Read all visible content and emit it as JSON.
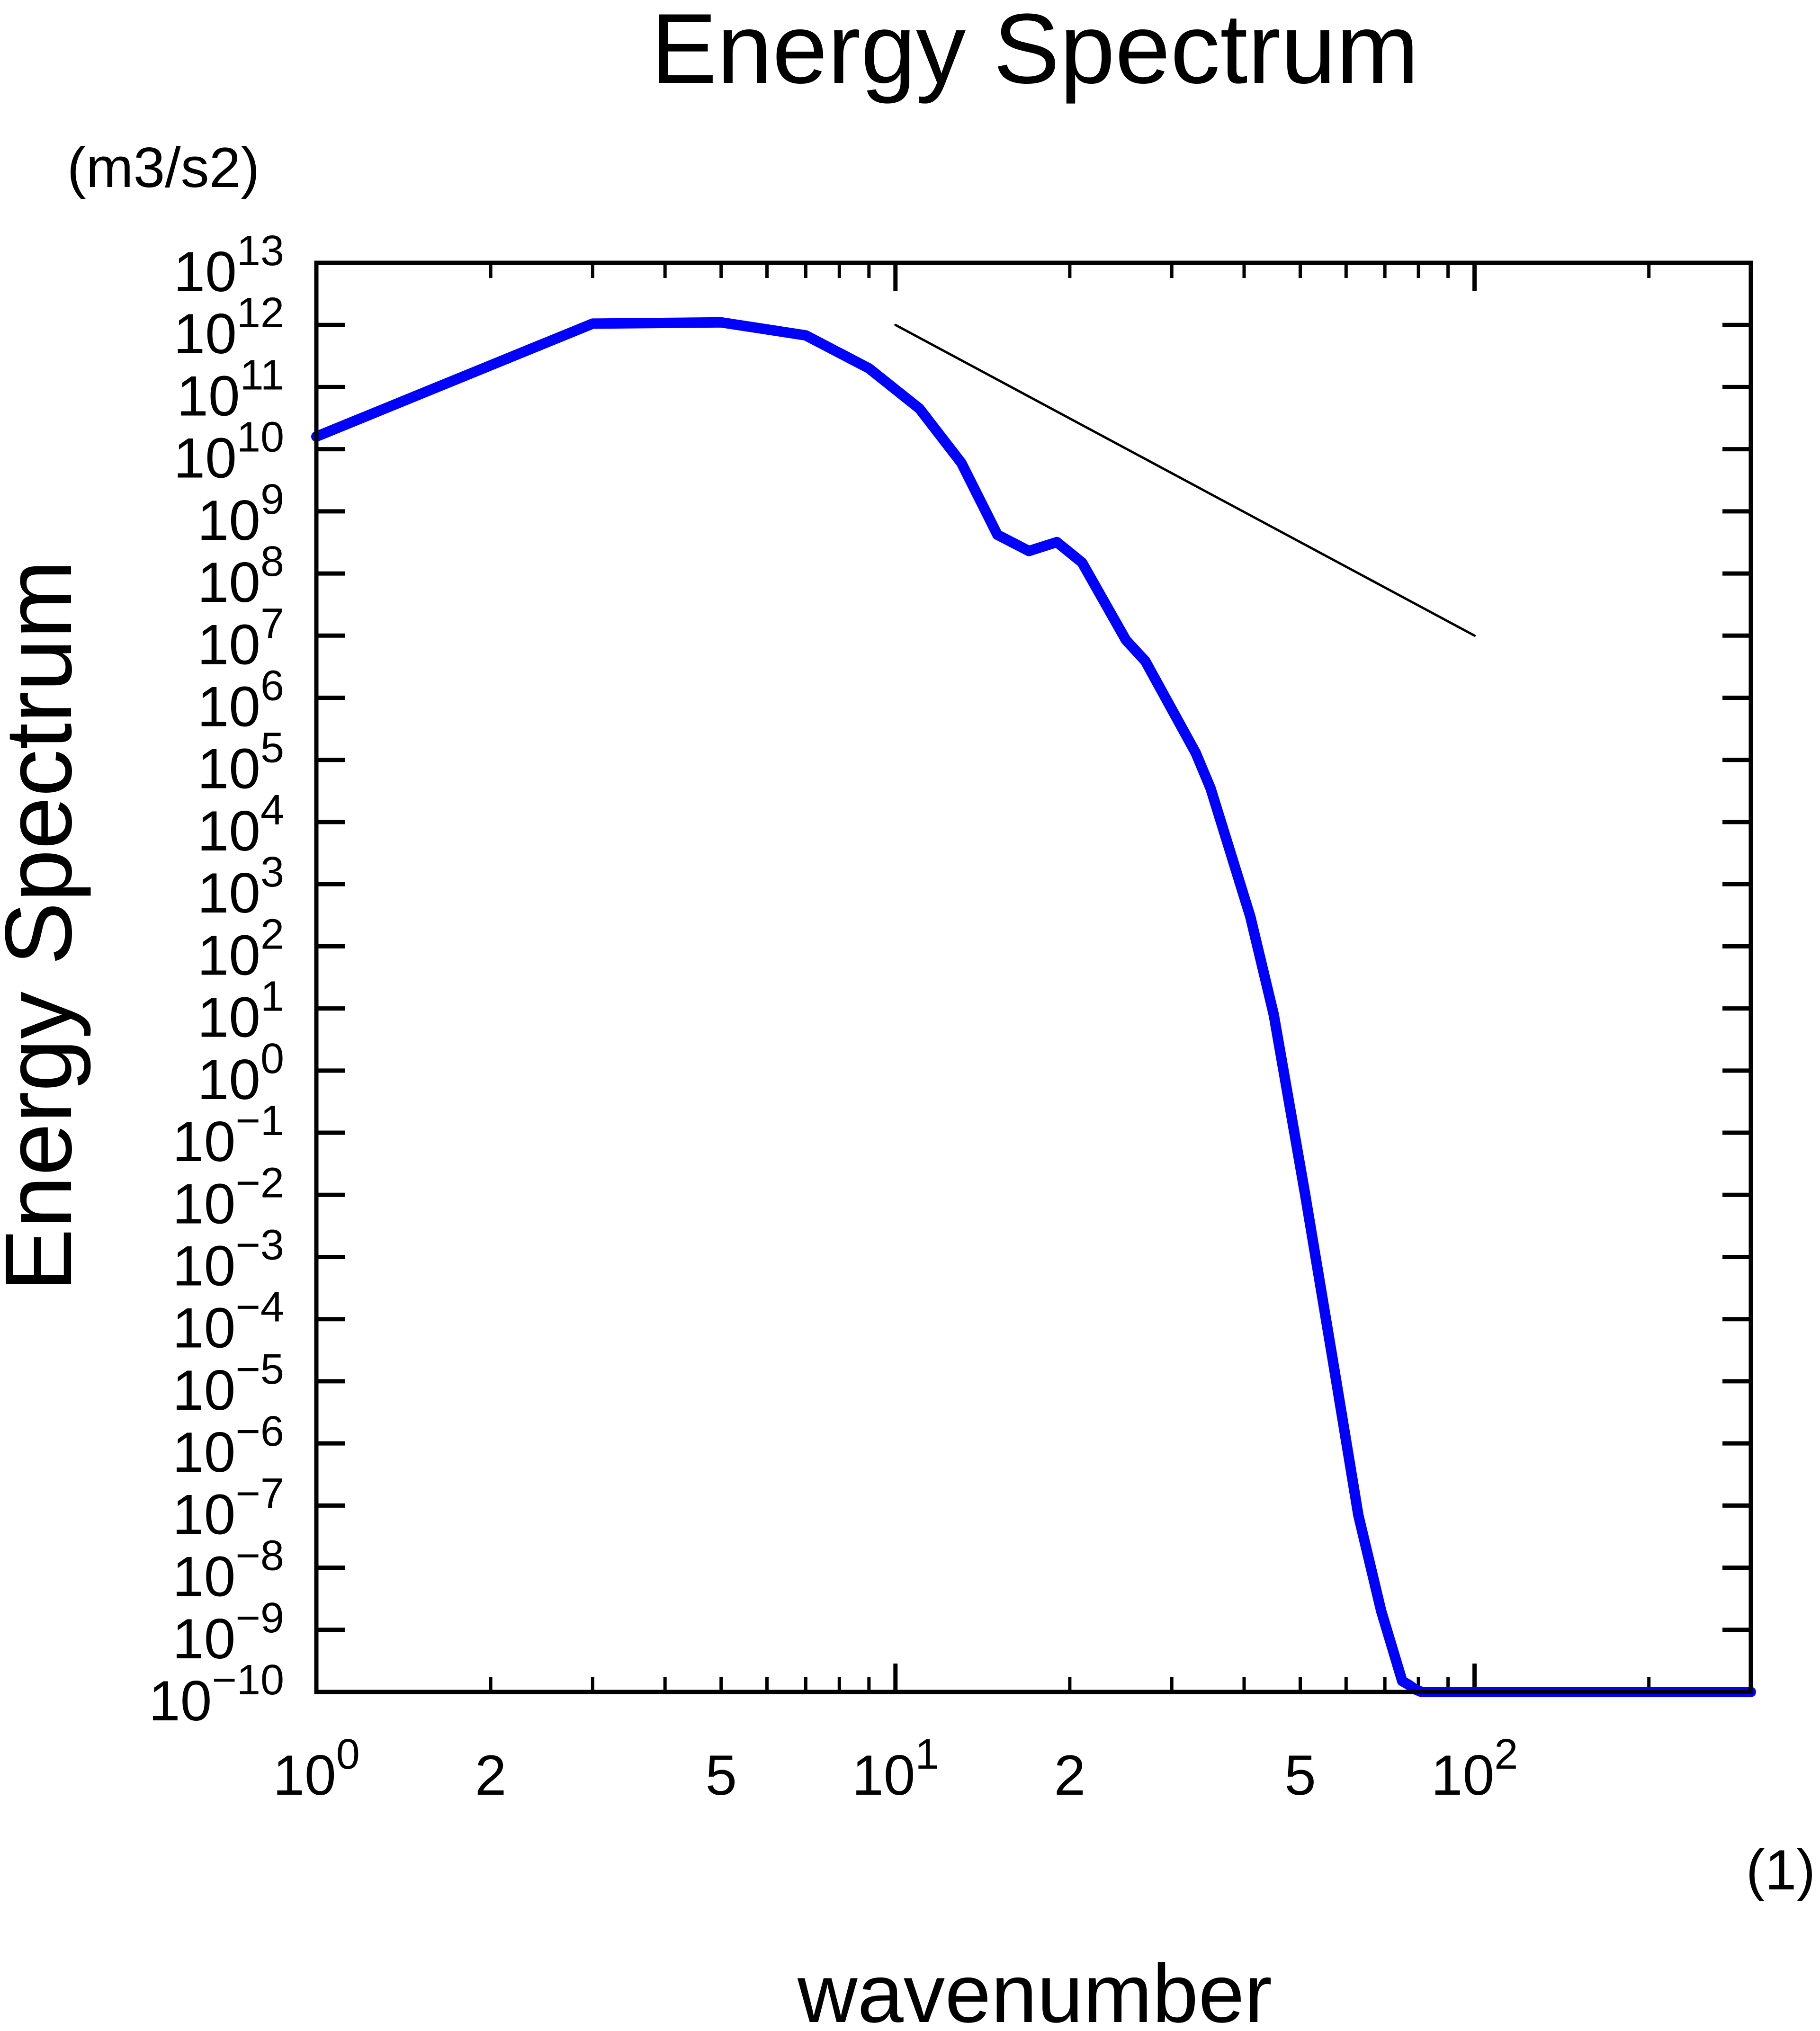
{
  "chart_data": {
    "type": "line",
    "title": "Energy Spectrum",
    "xlabel": "wavenumber",
    "ylabel": "Energy Spectrum",
    "x_units": "(1)",
    "y_units": "(m3/s2)",
    "xscale": "log",
    "yscale": "log",
    "xlim": [
      1,
      300
    ],
    "ylim": [
      1e-10,
      10000000000000.0
    ],
    "grid": false,
    "legend": "none",
    "x_ticks": [
      {
        "value": 1,
        "base": "10",
        "exp": "0"
      },
      {
        "value": 2,
        "base": "2",
        "exp": ""
      },
      {
        "value": 5,
        "base": "5",
        "exp": ""
      },
      {
        "value": 10,
        "base": "10",
        "exp": "1"
      },
      {
        "value": 20,
        "base": "2",
        "exp": ""
      },
      {
        "value": 50,
        "base": "5",
        "exp": ""
      },
      {
        "value": 100,
        "base": "10",
        "exp": "2"
      }
    ],
    "y_ticks": [
      {
        "value": 10000000000000.0,
        "base": "10",
        "exp": "13"
      },
      {
        "value": 1000000000000.0,
        "base": "10",
        "exp": "12"
      },
      {
        "value": 100000000000.0,
        "base": "10",
        "exp": "11"
      },
      {
        "value": 10000000000.0,
        "base": "10",
        "exp": "10"
      },
      {
        "value": 1000000000.0,
        "base": "10",
        "exp": "9"
      },
      {
        "value": 100000000.0,
        "base": "10",
        "exp": "8"
      },
      {
        "value": 10000000.0,
        "base": "10",
        "exp": "7"
      },
      {
        "value": 1000000.0,
        "base": "10",
        "exp": "6"
      },
      {
        "value": 100000.0,
        "base": "10",
        "exp": "5"
      },
      {
        "value": 10000.0,
        "base": "10",
        "exp": "4"
      },
      {
        "value": 1000.0,
        "base": "10",
        "exp": "3"
      },
      {
        "value": 100.0,
        "base": "10",
        "exp": "2"
      },
      {
        "value": 10.0,
        "base": "10",
        "exp": "1"
      },
      {
        "value": 1,
        "base": "10",
        "exp": "0"
      },
      {
        "value": 0.1,
        "base": "10",
        "exp": "−1"
      },
      {
        "value": 0.01,
        "base": "10",
        "exp": "−2"
      },
      {
        "value": 0.001,
        "base": "10",
        "exp": "−3"
      },
      {
        "value": 0.0001,
        "base": "10",
        "exp": "−4"
      },
      {
        "value": 1e-05,
        "base": "10",
        "exp": "−5"
      },
      {
        "value": 1e-06,
        "base": "10",
        "exp": "−6"
      },
      {
        "value": 1e-07,
        "base": "10",
        "exp": "−7"
      },
      {
        "value": 1e-08,
        "base": "10",
        "exp": "−8"
      },
      {
        "value": 1e-09,
        "base": "10",
        "exp": "−9"
      },
      {
        "value": 1e-10,
        "base": "10",
        "exp": "−10"
      }
    ],
    "series": [
      {
        "color": "#0000ff",
        "x": [
          1,
          3,
          5,
          7,
          9,
          11,
          13,
          15,
          17,
          19,
          21,
          25,
          27,
          33,
          35,
          41,
          45,
          51,
          57,
          63,
          69,
          75,
          77,
          79,
          81,
          85,
          90,
          300
        ],
        "y": [
          16000000000.0,
          1050000000000.0,
          1100000000000.0,
          680000000000.0,
          200000000000.0,
          45000000000.0,
          6000000000.0,
          420000000.0,
          230000000.0,
          320000000.0,
          150000000.0,
          8500000.0,
          3900000.0,
          130000.0,
          35000.0,
          300.0,
          8.0,
          0.01,
          2e-05,
          7e-08,
          2e-09,
          1.5e-10,
          1.3e-10,
          1.1e-10,
          1e-10,
          1e-10,
          1e-10,
          1e-10
        ]
      },
      {
        "color": "#000000",
        "x": [
          10,
          100
        ],
        "y": [
          1000000000000.0,
          10000000.0
        ]
      }
    ]
  }
}
